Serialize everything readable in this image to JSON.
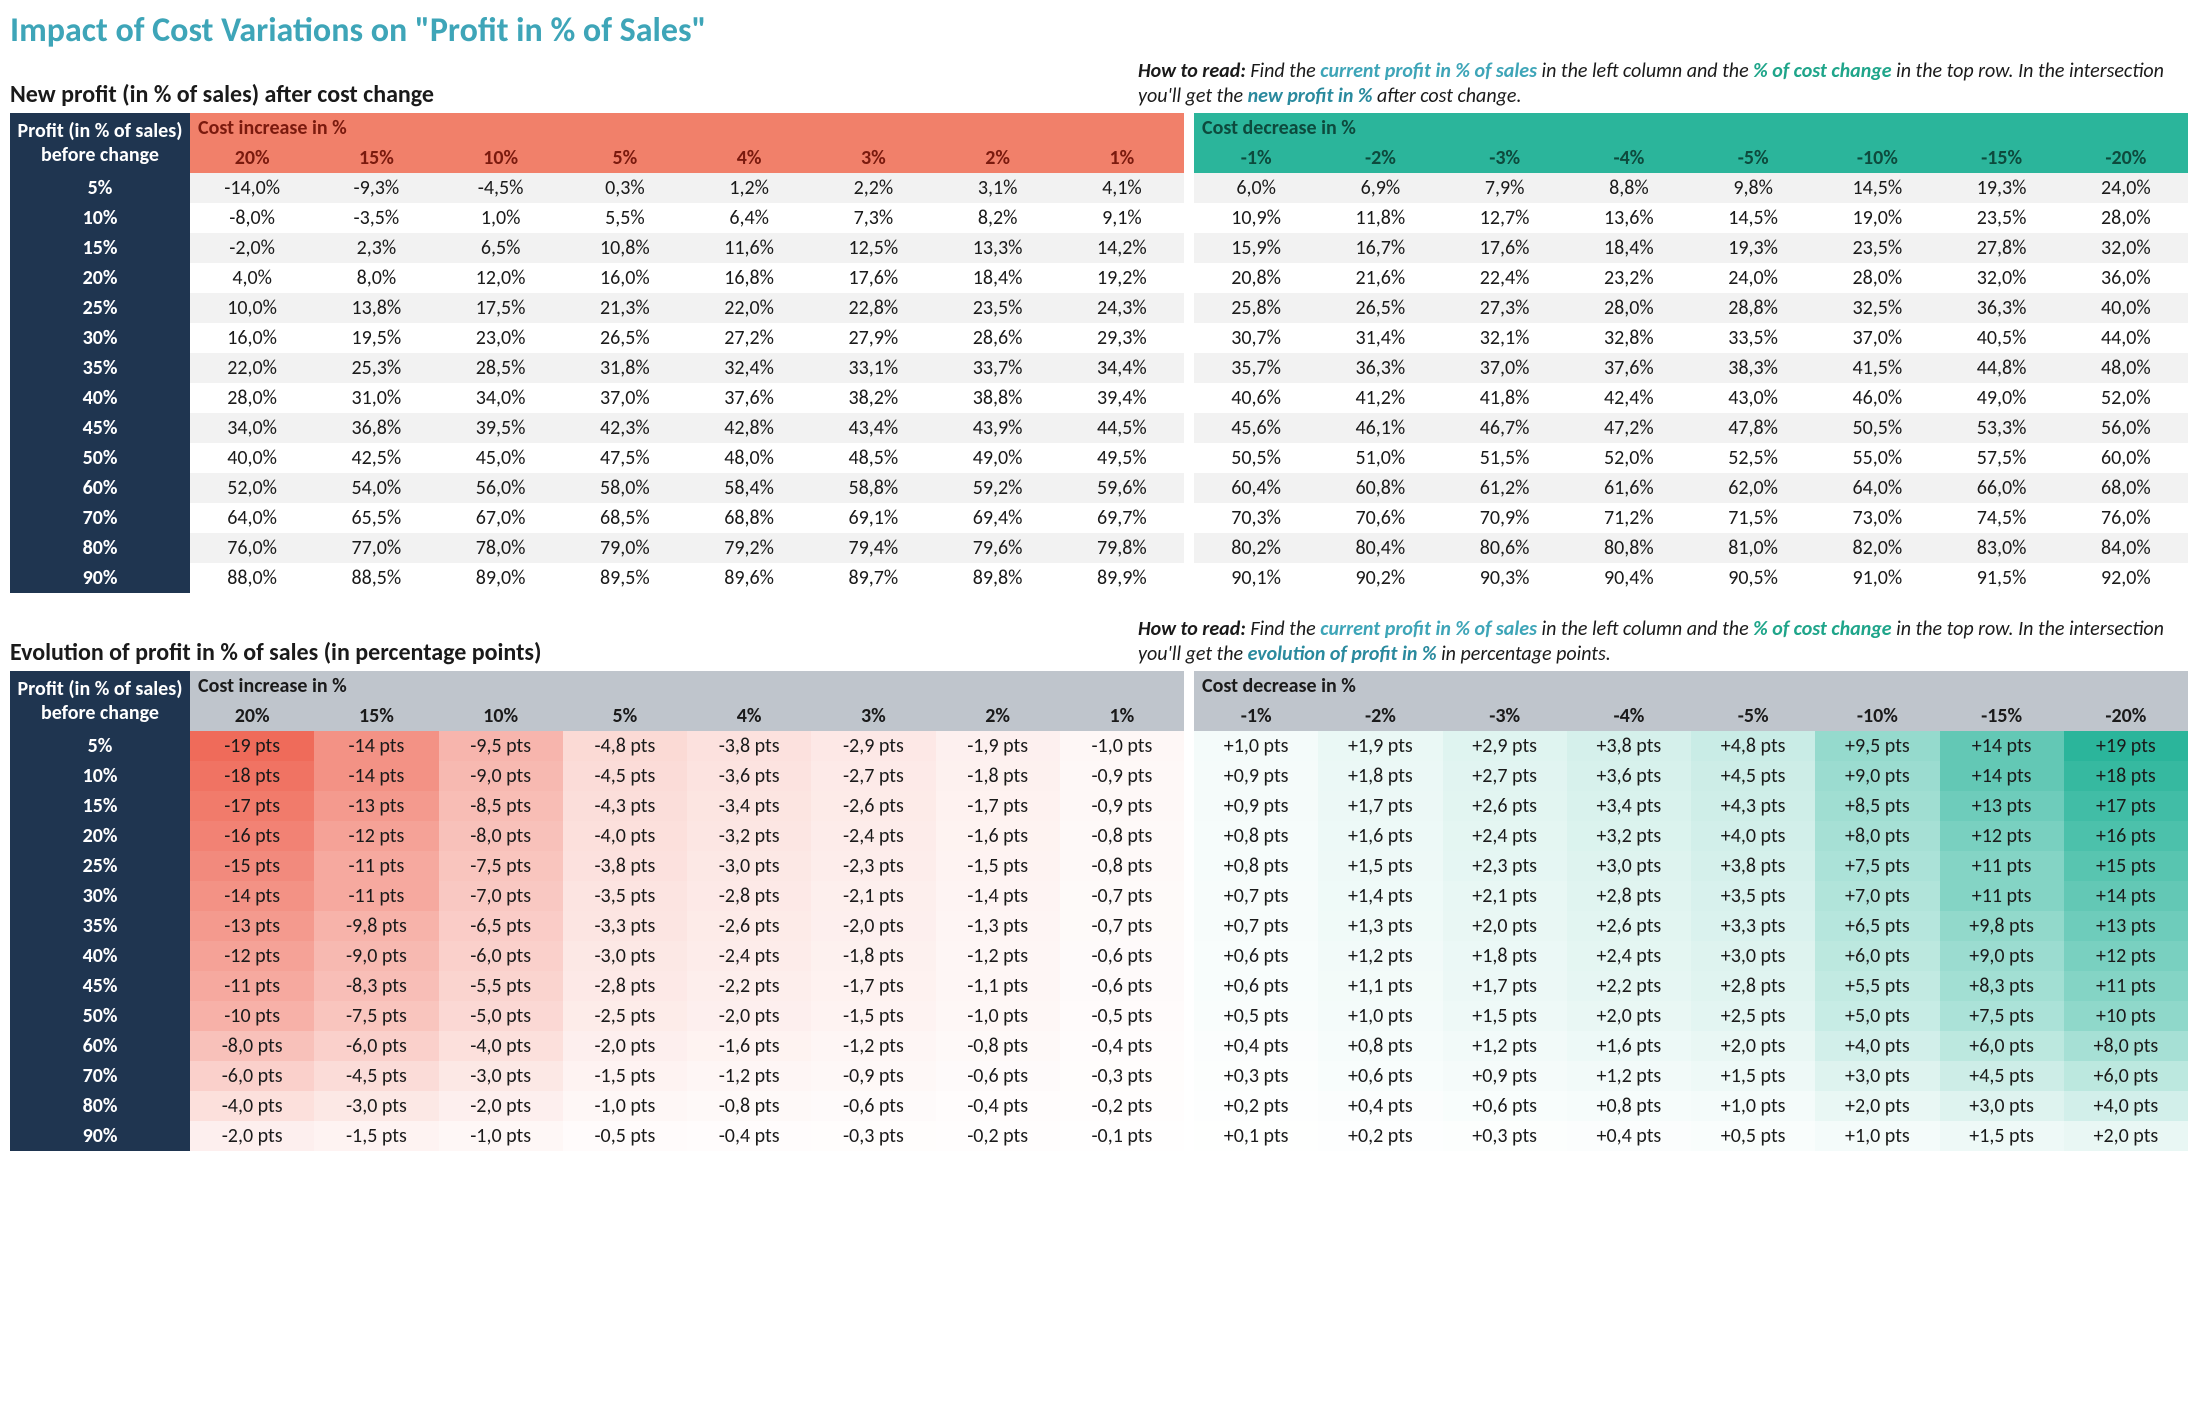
{
  "page_title": "Impact of Cost Variations on \"Profit in % of Sales\"",
  "colors": {
    "navy": "#1f3550",
    "title": "#3ea5b8",
    "inc_header": "#f1806a",
    "dec_header": "#2bb59b",
    "group_header_bg": "#bfc5cc",
    "stripe": "#f2f2f2"
  },
  "row_labels": [
    "5%",
    "10%",
    "15%",
    "20%",
    "25%",
    "30%",
    "35%",
    "40%",
    "45%",
    "50%",
    "60%",
    "70%",
    "80%",
    "90%"
  ],
  "inc_cols": [
    "20%",
    "15%",
    "10%",
    "5%",
    "4%",
    "3%",
    "2%",
    "1%"
  ],
  "dec_cols": [
    "-1%",
    "-2%",
    "-3%",
    "-4%",
    "-5%",
    "-10%",
    "-15%",
    "-20%"
  ],
  "table1": {
    "title": "New profit (in % of sales) after cost change",
    "how_to_read_parts": {
      "label": "How to read:",
      "t1": " Find the ",
      "em1": "current profit in % of sales",
      "t2": " in the left column and the ",
      "em2": "% of cost change",
      "t3": " in the top row. In the intersection you'll get the ",
      "em3": "new profit in %",
      "t4": " after cost change."
    },
    "header_left": "Profit (in % of sales) before change",
    "inc_label": "Cost increase in %",
    "dec_label": "Cost decrease in %",
    "rows_inc": [
      [
        "-14,0%",
        "-9,3%",
        "-4,5%",
        "0,3%",
        "1,2%",
        "2,2%",
        "3,1%",
        "4,1%"
      ],
      [
        "-8,0%",
        "-3,5%",
        "1,0%",
        "5,5%",
        "6,4%",
        "7,3%",
        "8,2%",
        "9,1%"
      ],
      [
        "-2,0%",
        "2,3%",
        "6,5%",
        "10,8%",
        "11,6%",
        "12,5%",
        "13,3%",
        "14,2%"
      ],
      [
        "4,0%",
        "8,0%",
        "12,0%",
        "16,0%",
        "16,8%",
        "17,6%",
        "18,4%",
        "19,2%"
      ],
      [
        "10,0%",
        "13,8%",
        "17,5%",
        "21,3%",
        "22,0%",
        "22,8%",
        "23,5%",
        "24,3%"
      ],
      [
        "16,0%",
        "19,5%",
        "23,0%",
        "26,5%",
        "27,2%",
        "27,9%",
        "28,6%",
        "29,3%"
      ],
      [
        "22,0%",
        "25,3%",
        "28,5%",
        "31,8%",
        "32,4%",
        "33,1%",
        "33,7%",
        "34,4%"
      ],
      [
        "28,0%",
        "31,0%",
        "34,0%",
        "37,0%",
        "37,6%",
        "38,2%",
        "38,8%",
        "39,4%"
      ],
      [
        "34,0%",
        "36,8%",
        "39,5%",
        "42,3%",
        "42,8%",
        "43,4%",
        "43,9%",
        "44,5%"
      ],
      [
        "40,0%",
        "42,5%",
        "45,0%",
        "47,5%",
        "48,0%",
        "48,5%",
        "49,0%",
        "49,5%"
      ],
      [
        "52,0%",
        "54,0%",
        "56,0%",
        "58,0%",
        "58,4%",
        "58,8%",
        "59,2%",
        "59,6%"
      ],
      [
        "64,0%",
        "65,5%",
        "67,0%",
        "68,5%",
        "68,8%",
        "69,1%",
        "69,4%",
        "69,7%"
      ],
      [
        "76,0%",
        "77,0%",
        "78,0%",
        "79,0%",
        "79,2%",
        "79,4%",
        "79,6%",
        "79,8%"
      ],
      [
        "88,0%",
        "88,5%",
        "89,0%",
        "89,5%",
        "89,6%",
        "89,7%",
        "89,8%",
        "89,9%"
      ]
    ],
    "rows_dec": [
      [
        "6,0%",
        "6,9%",
        "7,9%",
        "8,8%",
        "9,8%",
        "14,5%",
        "19,3%",
        "24,0%"
      ],
      [
        "10,9%",
        "11,8%",
        "12,7%",
        "13,6%",
        "14,5%",
        "19,0%",
        "23,5%",
        "28,0%"
      ],
      [
        "15,9%",
        "16,7%",
        "17,6%",
        "18,4%",
        "19,3%",
        "23,5%",
        "27,8%",
        "32,0%"
      ],
      [
        "20,8%",
        "21,6%",
        "22,4%",
        "23,2%",
        "24,0%",
        "28,0%",
        "32,0%",
        "36,0%"
      ],
      [
        "25,8%",
        "26,5%",
        "27,3%",
        "28,0%",
        "28,8%",
        "32,5%",
        "36,3%",
        "40,0%"
      ],
      [
        "30,7%",
        "31,4%",
        "32,1%",
        "32,8%",
        "33,5%",
        "37,0%",
        "40,5%",
        "44,0%"
      ],
      [
        "35,7%",
        "36,3%",
        "37,0%",
        "37,6%",
        "38,3%",
        "41,5%",
        "44,8%",
        "48,0%"
      ],
      [
        "40,6%",
        "41,2%",
        "41,8%",
        "42,4%",
        "43,0%",
        "46,0%",
        "49,0%",
        "52,0%"
      ],
      [
        "45,6%",
        "46,1%",
        "46,7%",
        "47,2%",
        "47,8%",
        "50,5%",
        "53,3%",
        "56,0%"
      ],
      [
        "50,5%",
        "51,0%",
        "51,5%",
        "52,0%",
        "52,5%",
        "55,0%",
        "57,5%",
        "60,0%"
      ],
      [
        "60,4%",
        "60,8%",
        "61,2%",
        "61,6%",
        "62,0%",
        "64,0%",
        "66,0%",
        "68,0%"
      ],
      [
        "70,3%",
        "70,6%",
        "70,9%",
        "71,2%",
        "71,5%",
        "73,0%",
        "74,5%",
        "76,0%"
      ],
      [
        "80,2%",
        "80,4%",
        "80,6%",
        "80,8%",
        "81,0%",
        "82,0%",
        "83,0%",
        "84,0%"
      ],
      [
        "90,1%",
        "90,2%",
        "90,3%",
        "90,4%",
        "90,5%",
        "91,0%",
        "91,5%",
        "92,0%"
      ]
    ]
  },
  "table2": {
    "title": "Evolution of profit in % of sales (in percentage points)",
    "how_to_read_parts": {
      "label": "How to read:",
      "t1": " Find the ",
      "em1": "current profit in % of sales",
      "t2": " in the left column and the ",
      "em2": "% of cost change",
      "t3": " in the top row. In the intersection you'll get the ",
      "em3": "evolution of profit in %",
      "t4": " in percentage points."
    },
    "header_left": "Profit (in % of sales) before change",
    "inc_label": "Cost increase in %",
    "dec_label": "Cost decrease in %",
    "rows_inc": [
      [
        "-19 pts",
        "-14 pts",
        "-9,5 pts",
        "-4,8 pts",
        "-3,8 pts",
        "-2,9 pts",
        "-1,9 pts",
        "-1,0 pts"
      ],
      [
        "-18 pts",
        "-14 pts",
        "-9,0 pts",
        "-4,5 pts",
        "-3,6 pts",
        "-2,7 pts",
        "-1,8 pts",
        "-0,9 pts"
      ],
      [
        "-17 pts",
        "-13 pts",
        "-8,5 pts",
        "-4,3 pts",
        "-3,4 pts",
        "-2,6 pts",
        "-1,7 pts",
        "-0,9 pts"
      ],
      [
        "-16 pts",
        "-12 pts",
        "-8,0 pts",
        "-4,0 pts",
        "-3,2 pts",
        "-2,4 pts",
        "-1,6 pts",
        "-0,8 pts"
      ],
      [
        "-15 pts",
        "-11 pts",
        "-7,5 pts",
        "-3,8 pts",
        "-3,0 pts",
        "-2,3 pts",
        "-1,5 pts",
        "-0,8 pts"
      ],
      [
        "-14 pts",
        "-11 pts",
        "-7,0 pts",
        "-3,5 pts",
        "-2,8 pts",
        "-2,1 pts",
        "-1,4 pts",
        "-0,7 pts"
      ],
      [
        "-13 pts",
        "-9,8 pts",
        "-6,5 pts",
        "-3,3 pts",
        "-2,6 pts",
        "-2,0 pts",
        "-1,3 pts",
        "-0,7 pts"
      ],
      [
        "-12 pts",
        "-9,0 pts",
        "-6,0 pts",
        "-3,0 pts",
        "-2,4 pts",
        "-1,8 pts",
        "-1,2 pts",
        "-0,6 pts"
      ],
      [
        "-11 pts",
        "-8,3 pts",
        "-5,5 pts",
        "-2,8 pts",
        "-2,2 pts",
        "-1,7 pts",
        "-1,1 pts",
        "-0,6 pts"
      ],
      [
        "-10 pts",
        "-7,5 pts",
        "-5,0 pts",
        "-2,5 pts",
        "-2,0 pts",
        "-1,5 pts",
        "-1,0 pts",
        "-0,5 pts"
      ],
      [
        "-8,0 pts",
        "-6,0 pts",
        "-4,0 pts",
        "-2,0 pts",
        "-1,6 pts",
        "-1,2 pts",
        "-0,8 pts",
        "-0,4 pts"
      ],
      [
        "-6,0 pts",
        "-4,5 pts",
        "-3,0 pts",
        "-1,5 pts",
        "-1,2 pts",
        "-0,9 pts",
        "-0,6 pts",
        "-0,3 pts"
      ],
      [
        "-4,0 pts",
        "-3,0 pts",
        "-2,0 pts",
        "-1,0 pts",
        "-0,8 pts",
        "-0,6 pts",
        "-0,4 pts",
        "-0,2 pts"
      ],
      [
        "-2,0 pts",
        "-1,5 pts",
        "-1,0 pts",
        "-0,5 pts",
        "-0,4 pts",
        "-0,3 pts",
        "-0,2 pts",
        "-0,1 pts"
      ]
    ],
    "rows_dec": [
      [
        "+1,0 pts",
        "+1,9 pts",
        "+2,9 pts",
        "+3,8 pts",
        "+4,8 pts",
        "+9,5 pts",
        "+14 pts",
        "+19 pts"
      ],
      [
        "+0,9 pts",
        "+1,8 pts",
        "+2,7 pts",
        "+3,6 pts",
        "+4,5 pts",
        "+9,0 pts",
        "+14 pts",
        "+18 pts"
      ],
      [
        "+0,9 pts",
        "+1,7 pts",
        "+2,6 pts",
        "+3,4 pts",
        "+4,3 pts",
        "+8,5 pts",
        "+13 pts",
        "+17 pts"
      ],
      [
        "+0,8 pts",
        "+1,6 pts",
        "+2,4 pts",
        "+3,2 pts",
        "+4,0 pts",
        "+8,0 pts",
        "+12 pts",
        "+16 pts"
      ],
      [
        "+0,8 pts",
        "+1,5 pts",
        "+2,3 pts",
        "+3,0 pts",
        "+3,8 pts",
        "+7,5 pts",
        "+11 pts",
        "+15 pts"
      ],
      [
        "+0,7 pts",
        "+1,4 pts",
        "+2,1 pts",
        "+2,8 pts",
        "+3,5 pts",
        "+7,0 pts",
        "+11 pts",
        "+14 pts"
      ],
      [
        "+0,7 pts",
        "+1,3 pts",
        "+2,0 pts",
        "+2,6 pts",
        "+3,3 pts",
        "+6,5 pts",
        "+9,8 pts",
        "+13 pts"
      ],
      [
        "+0,6 pts",
        "+1,2 pts",
        "+1,8 pts",
        "+2,4 pts",
        "+3,0 pts",
        "+6,0 pts",
        "+9,0 pts",
        "+12 pts"
      ],
      [
        "+0,6 pts",
        "+1,1 pts",
        "+1,7 pts",
        "+2,2 pts",
        "+2,8 pts",
        "+5,5 pts",
        "+8,3 pts",
        "+11 pts"
      ],
      [
        "+0,5 pts",
        "+1,0 pts",
        "+1,5 pts",
        "+2,0 pts",
        "+2,5 pts",
        "+5,0 pts",
        "+7,5 pts",
        "+10 pts"
      ],
      [
        "+0,4 pts",
        "+0,8 pts",
        "+1,2 pts",
        "+1,6 pts",
        "+2,0 pts",
        "+4,0 pts",
        "+6,0 pts",
        "+8,0 pts"
      ],
      [
        "+0,3 pts",
        "+0,6 pts",
        "+0,9 pts",
        "+1,2 pts",
        "+1,5 pts",
        "+3,0 pts",
        "+4,5 pts",
        "+6,0 pts"
      ],
      [
        "+0,2 pts",
        "+0,4 pts",
        "+0,6 pts",
        "+0,8 pts",
        "+1,0 pts",
        "+2,0 pts",
        "+3,0 pts",
        "+4,0 pts"
      ],
      [
        "+0,1 pts",
        "+0,2 pts",
        "+0,3 pts",
        "+0,4 pts",
        "+0,5 pts",
        "+1,0 pts",
        "+1,5 pts",
        "+2,0 pts"
      ]
    ],
    "heat_inc_values": [
      [
        19,
        14,
        9.5,
        4.8,
        3.8,
        2.9,
        1.9,
        1.0
      ],
      [
        18,
        14,
        9.0,
        4.5,
        3.6,
        2.7,
        1.8,
        0.9
      ],
      [
        17,
        13,
        8.5,
        4.3,
        3.4,
        2.6,
        1.7,
        0.9
      ],
      [
        16,
        12,
        8.0,
        4.0,
        3.2,
        2.4,
        1.6,
        0.8
      ],
      [
        15,
        11,
        7.5,
        3.8,
        3.0,
        2.3,
        1.5,
        0.8
      ],
      [
        14,
        11,
        7.0,
        3.5,
        2.8,
        2.1,
        1.4,
        0.7
      ],
      [
        13,
        9.8,
        6.5,
        3.3,
        2.6,
        2.0,
        1.3,
        0.7
      ],
      [
        12,
        9.0,
        6.0,
        3.0,
        2.4,
        1.8,
        1.2,
        0.6
      ],
      [
        11,
        8.3,
        5.5,
        2.8,
        2.2,
        1.7,
        1.1,
        0.6
      ],
      [
        10,
        7.5,
        5.0,
        2.5,
        2.0,
        1.5,
        1.0,
        0.5
      ],
      [
        8.0,
        6.0,
        4.0,
        2.0,
        1.6,
        1.2,
        0.8,
        0.4
      ],
      [
        6.0,
        4.5,
        3.0,
        1.5,
        1.2,
        0.9,
        0.6,
        0.3
      ],
      [
        4.0,
        3.0,
        2.0,
        1.0,
        0.8,
        0.6,
        0.4,
        0.2
      ],
      [
        2.0,
        1.5,
        1.0,
        0.5,
        0.4,
        0.3,
        0.2,
        0.1
      ]
    ],
    "heat_dec_values": [
      [
        1.0,
        1.9,
        2.9,
        3.8,
        4.8,
        9.5,
        14,
        19
      ],
      [
        0.9,
        1.8,
        2.7,
        3.6,
        4.5,
        9.0,
        14,
        18
      ],
      [
        0.9,
        1.7,
        2.6,
        3.4,
        4.3,
        8.5,
        13,
        17
      ],
      [
        0.8,
        1.6,
        2.4,
        3.2,
        4.0,
        8.0,
        12,
        16
      ],
      [
        0.8,
        1.5,
        2.3,
        3.0,
        3.8,
        7.5,
        11,
        15
      ],
      [
        0.7,
        1.4,
        2.1,
        2.8,
        3.5,
        7.0,
        11,
        14
      ],
      [
        0.7,
        1.3,
        2.0,
        2.6,
        3.3,
        6.5,
        9.8,
        13
      ],
      [
        0.6,
        1.2,
        1.8,
        2.4,
        3.0,
        6.0,
        9.0,
        12
      ],
      [
        0.6,
        1.1,
        1.7,
        2.2,
        2.8,
        5.5,
        8.3,
        11
      ],
      [
        0.5,
        1.0,
        1.5,
        2.0,
        2.5,
        5.0,
        7.5,
        10
      ],
      [
        0.4,
        0.8,
        1.2,
        1.6,
        2.0,
        4.0,
        6.0,
        8.0
      ],
      [
        0.3,
        0.6,
        0.9,
        1.2,
        1.5,
        3.0,
        4.5,
        6.0
      ],
      [
        0.2,
        0.4,
        0.6,
        0.8,
        1.0,
        2.0,
        3.0,
        4.0
      ],
      [
        0.1,
        0.2,
        0.3,
        0.4,
        0.5,
        1.0,
        1.5,
        2.0
      ]
    ],
    "heat_max": 19,
    "heat_red": "#ef6b5a",
    "heat_green": "#2bb59b"
  }
}
